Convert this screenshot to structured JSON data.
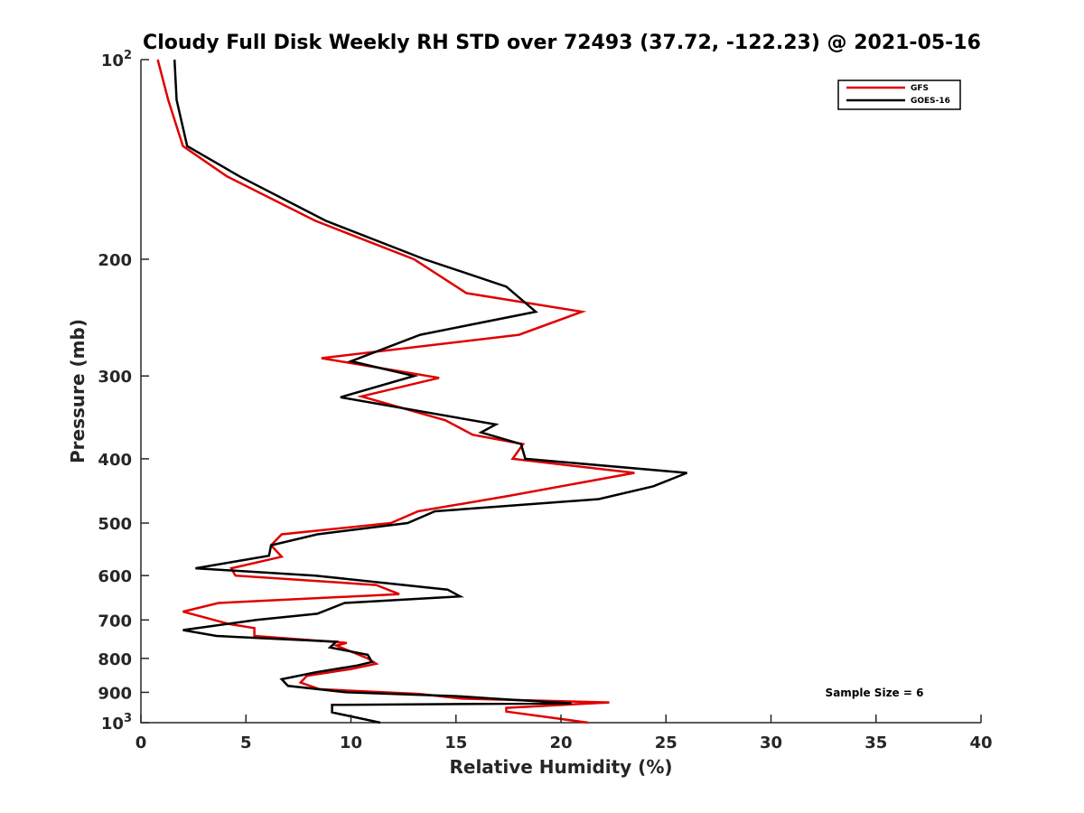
{
  "chart_data": {
    "type": "line",
    "title": "Cloudy Full Disk Weekly RH STD over 72493 (37.72, -122.23) @ 2021-05-16",
    "xlabel": "Relative Humidity (%)",
    "ylabel": "Pressure (mb)",
    "xlim": [
      0,
      40
    ],
    "ylim": [
      100,
      1000
    ],
    "y_scale": "log",
    "y_reversed": true,
    "x_ticks": [
      "0",
      "5",
      "10",
      "15",
      "20",
      "25",
      "30",
      "35",
      "40"
    ],
    "y_ticks": [
      {
        "value": 100,
        "base": "10",
        "exp": "2"
      },
      {
        "value": 200,
        "label": "200"
      },
      {
        "value": 300,
        "label": "300"
      },
      {
        "value": 400,
        "label": "400"
      },
      {
        "value": 500,
        "label": "500"
      },
      {
        "value": 600,
        "label": "600"
      },
      {
        "value": 700,
        "label": "700"
      },
      {
        "value": 800,
        "label": "800"
      },
      {
        "value": 900,
        "label": "900"
      },
      {
        "value": 1000,
        "base": "10",
        "exp": "3"
      }
    ],
    "grid": false,
    "legend_position": "top-right",
    "annotation": "Sample Size = 6",
    "series": [
      {
        "name": "GFS",
        "color": "#e00000",
        "points": [
          [
            0.8,
            100
          ],
          [
            1.3,
            115
          ],
          [
            2.0,
            135
          ],
          [
            4.1,
            150
          ],
          [
            8.3,
            175
          ],
          [
            13.0,
            200
          ],
          [
            15.5,
            225
          ],
          [
            21.0,
            240
          ],
          [
            18.0,
            260
          ],
          [
            8.6,
            282
          ],
          [
            14.2,
            302
          ],
          [
            10.5,
            322
          ],
          [
            14.5,
            350
          ],
          [
            15.8,
            368
          ],
          [
            18.2,
            380
          ],
          [
            17.7,
            400
          ],
          [
            23.5,
            420
          ],
          [
            17.5,
            455
          ],
          [
            13.2,
            480
          ],
          [
            11.9,
            500
          ],
          [
            6.7,
            520
          ],
          [
            6.2,
            540
          ],
          [
            6.7,
            562
          ],
          [
            4.3,
            585
          ],
          [
            4.5,
            600
          ],
          [
            11.2,
            620
          ],
          [
            12.3,
            640
          ],
          [
            3.7,
            660
          ],
          [
            2.0,
            680
          ],
          [
            4.2,
            710
          ],
          [
            5.4,
            720
          ],
          [
            5.4,
            740
          ],
          [
            9.8,
            758
          ],
          [
            9.3,
            765
          ],
          [
            10.8,
            800
          ],
          [
            11.2,
            815
          ],
          [
            10.0,
            830
          ],
          [
            7.9,
            850
          ],
          [
            7.6,
            870
          ],
          [
            8.5,
            890
          ],
          [
            13.3,
            905
          ],
          [
            15.3,
            920
          ],
          [
            22.3,
            932
          ],
          [
            17.4,
            950
          ],
          [
            17.4,
            962
          ],
          [
            21.3,
            1000
          ]
        ]
      },
      {
        "name": "GOES-16",
        "color": "#000000",
        "points": [
          [
            1.6,
            100
          ],
          [
            1.7,
            115
          ],
          [
            2.2,
            135
          ],
          [
            4.7,
            150
          ],
          [
            8.8,
            175
          ],
          [
            13.5,
            200
          ],
          [
            17.4,
            220
          ],
          [
            18.8,
            240
          ],
          [
            13.3,
            260
          ],
          [
            10.0,
            285
          ],
          [
            13.0,
            300
          ],
          [
            9.5,
            323
          ],
          [
            16.9,
            355
          ],
          [
            16.2,
            365
          ],
          [
            18.1,
            380
          ],
          [
            18.3,
            400
          ],
          [
            26.0,
            420
          ],
          [
            24.4,
            440
          ],
          [
            21.8,
            460
          ],
          [
            14.0,
            480
          ],
          [
            12.7,
            500
          ],
          [
            8.4,
            520
          ],
          [
            6.2,
            540
          ],
          [
            6.1,
            560
          ],
          [
            2.6,
            585
          ],
          [
            8.3,
            600
          ],
          [
            14.6,
            630
          ],
          [
            15.2,
            645
          ],
          [
            9.7,
            660
          ],
          [
            8.4,
            685
          ],
          [
            5.5,
            700
          ],
          [
            2.0,
            725
          ],
          [
            3.6,
            740
          ],
          [
            9.3,
            755
          ],
          [
            9.0,
            770
          ],
          [
            10.8,
            790
          ],
          [
            11.0,
            810
          ],
          [
            10.3,
            820
          ],
          [
            8.3,
            840
          ],
          [
            6.7,
            860
          ],
          [
            7.0,
            880
          ],
          [
            9.8,
            900
          ],
          [
            15.0,
            912
          ],
          [
            16.8,
            920
          ],
          [
            20.5,
            935
          ],
          [
            9.1,
            940
          ],
          [
            9.1,
            965
          ],
          [
            11.4,
            1000
          ]
        ]
      }
    ]
  }
}
